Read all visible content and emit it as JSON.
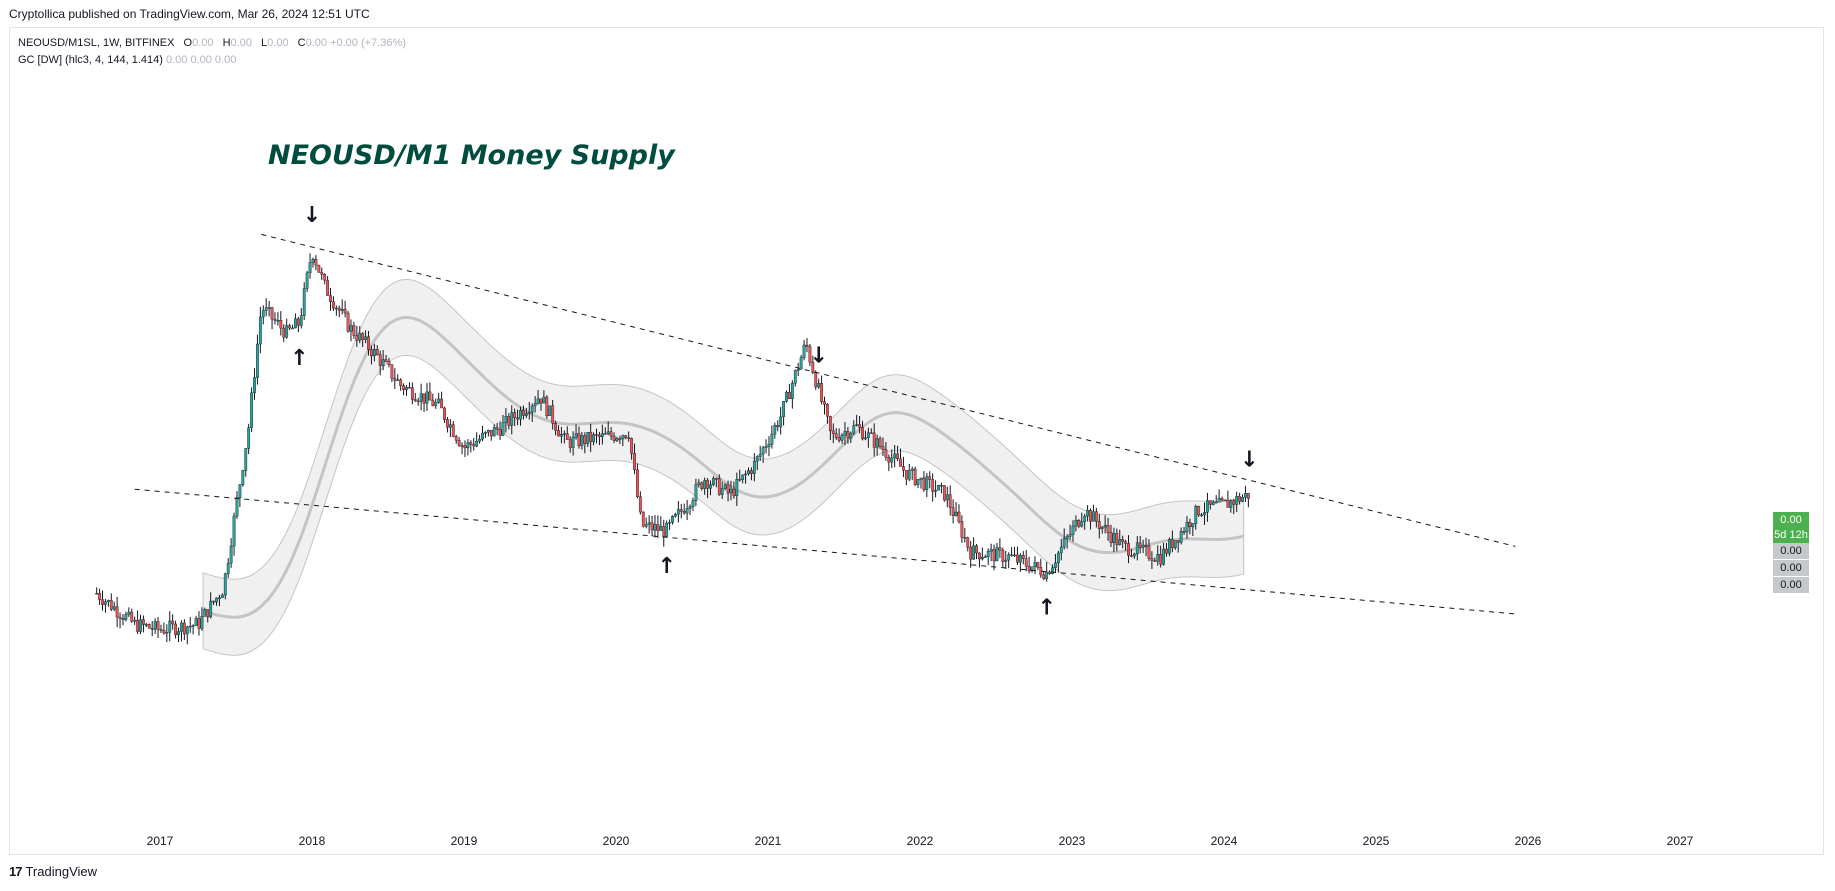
{
  "header": {
    "published": "Cryptollica published on TradingView.com, Mar 26, 2024 12:51 UTC"
  },
  "legend": {
    "symbol": "NEOUSD/M1SL, 1W, BITFINEX",
    "ohlc": [
      {
        "label": "O",
        "value": "0.00"
      },
      {
        "label": "H",
        "value": "0.00"
      },
      {
        "label": "L",
        "value": "0.00"
      },
      {
        "label": "C",
        "value": "0.00"
      }
    ],
    "change": "+0.00 (+7.36%)",
    "indicator": "GC [DW] (hlc3, 4, 144, 1.414)",
    "indicator_values": [
      "0.00",
      "0.00",
      "0.00"
    ]
  },
  "badges": {
    "price": "0.00",
    "countdown": "5d 12h",
    "band_values": [
      "0.00",
      "0.00",
      "0.00"
    ]
  },
  "footer": {
    "logo": "17",
    "brand": "TradingView"
  },
  "chart_data": {
    "type": "candlestick",
    "title": "NEOUSD/M1 Money Supply",
    "x_range": [
      "2016-06",
      "2027-12"
    ],
    "x_ticks": [
      "2017",
      "2018",
      "2019",
      "2020",
      "2021",
      "2022",
      "2023",
      "2024",
      "2025",
      "2026",
      "2027"
    ],
    "y_axis": "none",
    "grid": false,
    "colors": {
      "up": "#26a69a",
      "down": "#ef5350",
      "band_fill": "#f0f0f0",
      "band_line": "#c4c4c4",
      "text": "#004d40"
    },
    "price_path_relative": [
      {
        "date": "2016-08",
        "value": 0.34
      },
      {
        "date": "2016-11",
        "value": 0.28
      },
      {
        "date": "2017-01",
        "value": 0.27
      },
      {
        "date": "2017-04",
        "value": 0.28
      },
      {
        "date": "2017-06",
        "value": 0.35
      },
      {
        "date": "2017-08",
        "value": 0.66
      },
      {
        "date": "2017-09",
        "value": 0.89
      },
      {
        "date": "2017-11",
        "value": 0.84
      },
      {
        "date": "2017-12",
        "value": 0.86
      },
      {
        "date": "2018-01",
        "value": 1.0
      },
      {
        "date": "2018-02",
        "value": 0.93
      },
      {
        "date": "2018-04",
        "value": 0.85
      },
      {
        "date": "2018-06",
        "value": 0.8
      },
      {
        "date": "2018-08",
        "value": 0.74
      },
      {
        "date": "2018-11",
        "value": 0.7
      },
      {
        "date": "2019-01",
        "value": 0.62
      },
      {
        "date": "2019-04",
        "value": 0.66
      },
      {
        "date": "2019-07",
        "value": 0.72
      },
      {
        "date": "2019-09",
        "value": 0.63
      },
      {
        "date": "2019-12",
        "value": 0.64
      },
      {
        "date": "2020-02",
        "value": 0.65
      },
      {
        "date": "2020-03",
        "value": 0.47
      },
      {
        "date": "2020-05",
        "value": 0.46
      },
      {
        "date": "2020-08",
        "value": 0.56
      },
      {
        "date": "2020-10",
        "value": 0.53
      },
      {
        "date": "2020-12",
        "value": 0.59
      },
      {
        "date": "2021-02",
        "value": 0.68
      },
      {
        "date": "2021-04",
        "value": 0.82
      },
      {
        "date": "2021-06",
        "value": 0.64
      },
      {
        "date": "2021-08",
        "value": 0.66
      },
      {
        "date": "2021-10",
        "value": 0.62
      },
      {
        "date": "2021-12",
        "value": 0.57
      },
      {
        "date": "2022-03",
        "value": 0.53
      },
      {
        "date": "2022-05",
        "value": 0.42
      },
      {
        "date": "2022-08",
        "value": 0.41
      },
      {
        "date": "2022-11",
        "value": 0.38
      },
      {
        "date": "2023-02",
        "value": 0.5
      },
      {
        "date": "2023-05",
        "value": 0.43
      },
      {
        "date": "2023-08",
        "value": 0.41
      },
      {
        "date": "2023-11",
        "value": 0.5
      },
      {
        "date": "2024-01",
        "value": 0.51
      },
      {
        "date": "2024-03",
        "value": 0.53
      }
    ],
    "trendlines": [
      {
        "style": "dashed",
        "from": {
          "date": "2017-09",
          "value": 1.03
        },
        "to": {
          "date": "2025-12",
          "value": 0.43
        }
      },
      {
        "style": "dashed",
        "from": {
          "date": "2016-11",
          "value": 0.54
        },
        "to": {
          "date": "2025-12",
          "value": 0.3
        }
      }
    ],
    "annotations": [
      {
        "symbol": "↓",
        "date": "2018-01",
        "position": "above"
      },
      {
        "symbol": "↑",
        "date": "2017-12",
        "position": "below"
      },
      {
        "symbol": "↑",
        "date": "2020-05",
        "position": "below"
      },
      {
        "symbol": "↓",
        "date": "2021-05",
        "position": "above"
      },
      {
        "symbol": "↑",
        "date": "2022-11",
        "position": "below"
      },
      {
        "symbol": "↓",
        "date": "2024-03",
        "position": "above"
      }
    ]
  }
}
